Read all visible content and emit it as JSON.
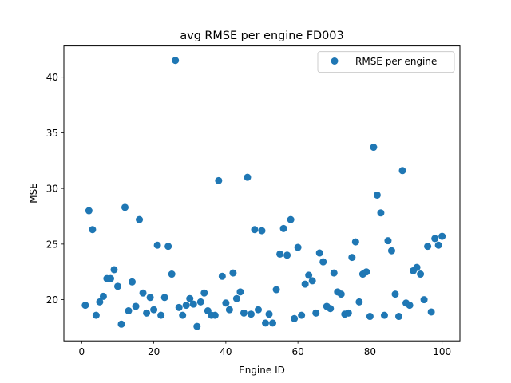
{
  "chart_data": {
    "type": "scatter",
    "title": "avg RMSE per engine FD003",
    "xlabel": "Engine ID",
    "ylabel": "MSE",
    "xlim": [
      -4.95,
      104.95
    ],
    "ylim": [
      16.3,
      42.8
    ],
    "xticks": [
      0,
      20,
      40,
      60,
      80,
      100
    ],
    "yticks": [
      20,
      25,
      30,
      35,
      40
    ],
    "grid": false,
    "legend_position": "top-right",
    "series": [
      {
        "name": "RMSE per engine",
        "color": "#1f77b4",
        "x": [
          1,
          2,
          3,
          4,
          5,
          6,
          7,
          8,
          9,
          10,
          11,
          12,
          13,
          14,
          15,
          16,
          17,
          18,
          19,
          20,
          21,
          22,
          23,
          24,
          25,
          26,
          27,
          28,
          29,
          30,
          31,
          32,
          33,
          34,
          35,
          36,
          37,
          38,
          39,
          40,
          41,
          42,
          43,
          44,
          45,
          46,
          47,
          48,
          49,
          50,
          51,
          52,
          53,
          54,
          55,
          56,
          57,
          58,
          59,
          60,
          61,
          62,
          63,
          64,
          65,
          66,
          67,
          68,
          69,
          70,
          71,
          72,
          73,
          74,
          75,
          76,
          77,
          78,
          79,
          80,
          81,
          82,
          83,
          84,
          85,
          86,
          87,
          88,
          89,
          90,
          91,
          92,
          93,
          94,
          95,
          96,
          97,
          98,
          99,
          100
        ],
        "y": [
          19.5,
          28.0,
          26.3,
          18.6,
          19.8,
          20.3,
          21.9,
          21.9,
          22.7,
          21.2,
          17.8,
          28.3,
          19.0,
          21.6,
          19.4,
          27.2,
          20.6,
          18.8,
          20.2,
          19.1,
          24.9,
          18.6,
          20.2,
          24.8,
          22.3,
          41.5,
          19.3,
          18.6,
          19.5,
          20.1,
          19.6,
          17.6,
          19.8,
          20.6,
          19.0,
          18.6,
          18.6,
          30.7,
          22.1,
          19.7,
          19.1,
          22.4,
          20.1,
          20.7,
          18.8,
          31.0,
          18.7,
          26.3,
          19.1,
          26.2,
          17.9,
          18.7,
          17.9,
          20.9,
          24.1,
          26.4,
          24.0,
          27.2,
          18.3,
          24.7,
          18.6,
          21.4,
          22.2,
          21.7,
          18.8,
          24.2,
          23.4,
          19.4,
          19.2,
          22.4,
          20.7,
          20.5,
          18.7,
          18.8,
          23.8,
          25.2,
          19.8,
          22.3,
          22.5,
          18.5,
          33.7,
          29.4,
          27.8,
          18.6,
          25.3,
          24.4,
          20.5,
          18.5,
          31.6,
          19.7,
          19.5,
          22.6,
          22.9,
          22.3,
          20.0,
          24.8,
          18.9,
          25.5,
          24.9,
          25.7
        ]
      }
    ]
  }
}
